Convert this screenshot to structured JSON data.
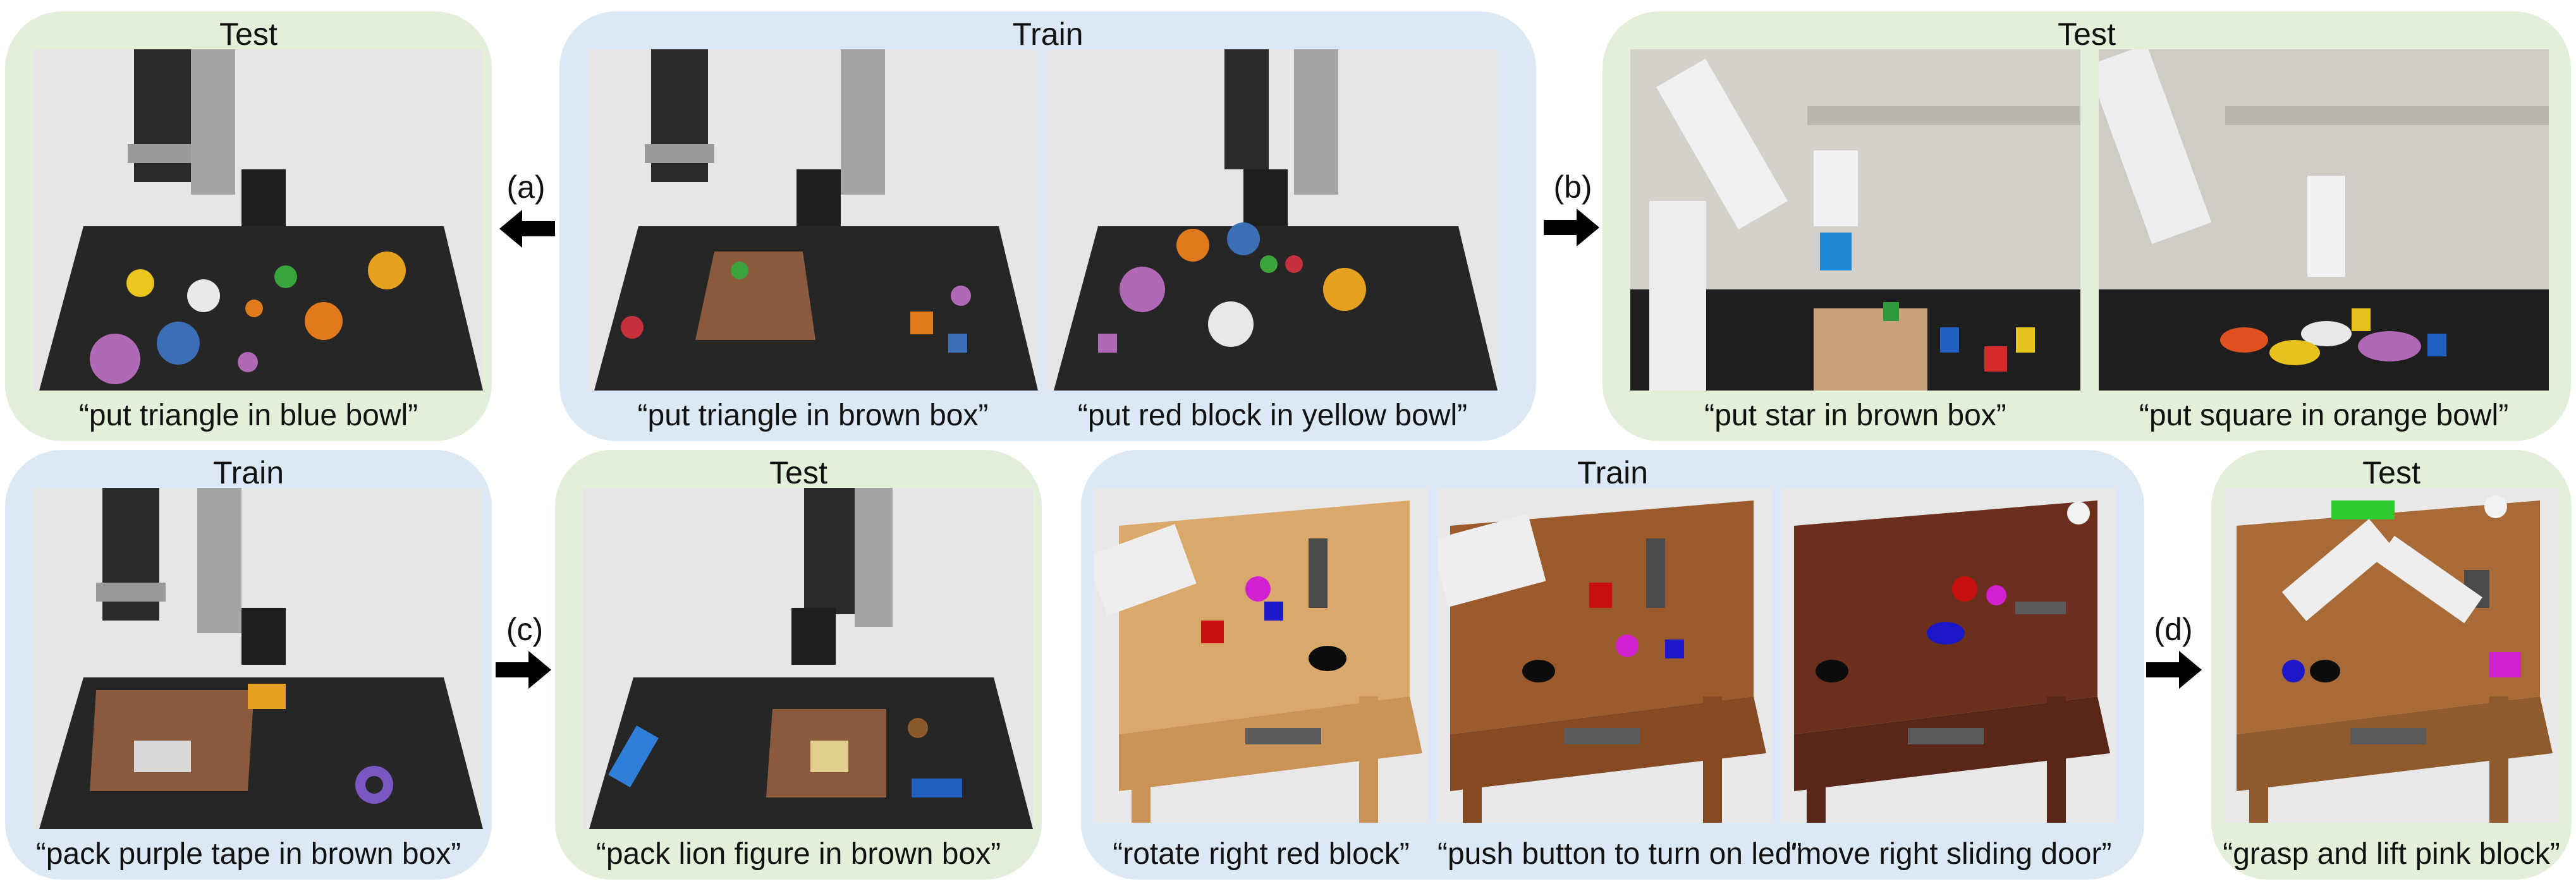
{
  "panels": {
    "a_test": {
      "title": "Test",
      "caption": "“put triangle in blue bowl”"
    },
    "a_train": {
      "title": "Train",
      "captions": [
        "“put triangle in brown box”",
        "“put red block in yellow bowl”"
      ]
    },
    "b_test": {
      "title": "Test",
      "captions": [
        "“put star in brown box”",
        "“put square in orange bowl”"
      ]
    },
    "c_train": {
      "title": "Train",
      "caption": "“pack purple tape in brown box”"
    },
    "c_test": {
      "title": "Test",
      "caption": "“pack lion figure in brown box”"
    },
    "d_train": {
      "title": "Train",
      "captions": [
        "“rotate right red block”",
        "“push button to turn on led”",
        "“move right sliding door”"
      ]
    },
    "d_test": {
      "title": "Test",
      "caption": "“grasp and lift pink block”"
    }
  },
  "arrows": {
    "a": "(a)",
    "b": "(b)",
    "c": "(c)",
    "d": "(d)"
  },
  "colors": {
    "train_bg": "#dde8f5",
    "test_bg": "#e3efda",
    "table": "#262626",
    "floor": "#e4e4e4",
    "wood_light": "#d9a86a",
    "wood_mid": "#9b5a2c",
    "wood_dark": "#6a2f1d"
  }
}
